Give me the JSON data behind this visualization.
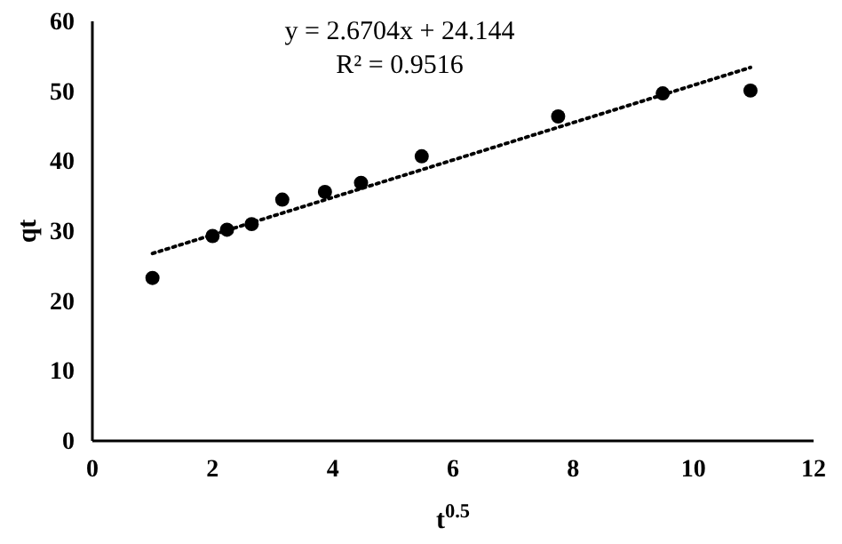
{
  "chart_data": {
    "type": "scatter",
    "xlabel": "t$^{0.5}$",
    "ylabel": "qt",
    "xlim": [
      0,
      12
    ],
    "ylim": [
      0,
      60
    ],
    "xticks": [
      0,
      2,
      4,
      6,
      8,
      10,
      12
    ],
    "yticks": [
      0,
      10,
      20,
      30,
      40,
      50,
      60
    ],
    "grid": false,
    "marker": "circle",
    "annotations": [
      "y = 2.6704x + 24.144",
      "R² = 0.9516"
    ],
    "series": [
      {
        "color": "#000000",
        "x": [
          1,
          2,
          2.24,
          2.65,
          3.16,
          3.87,
          4.47,
          5.48,
          7.75,
          9.49,
          10.95
        ],
        "values": [
          23.3,
          29.3,
          30.2,
          31.0,
          34.5,
          35.6,
          36.9,
          40.7,
          46.4,
          49.7,
          50.1
        ]
      },
      {
        "type": "line",
        "color": "#000000",
        "line_style": "dotted",
        "marker": "none",
        "x": [
          1,
          10.95
        ],
        "values": [
          26.8,
          53.4
        ]
      }
    ]
  }
}
